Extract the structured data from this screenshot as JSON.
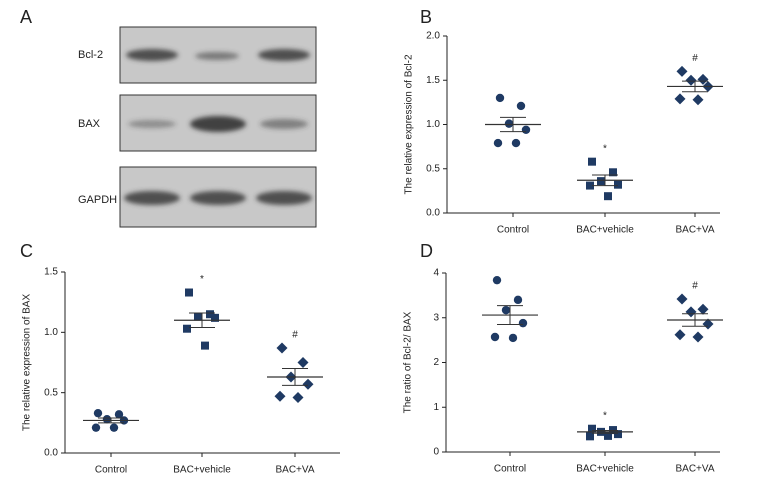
{
  "blot": {
    "panel_label": "A",
    "rows": [
      "Bcl-2",
      "BAX",
      "GAPDH"
    ]
  },
  "chart_data": [
    {
      "type": "dot",
      "panel_label": "B",
      "ylabel": "The relative expression of Bcl-2",
      "color": "#1f3a63",
      "categories": [
        "Control",
        "BAC+vehicle",
        "BAC+VA"
      ],
      "ylim": [
        0,
        2
      ],
      "yticks": [
        {
          "value": 0,
          "label": "0.0"
        },
        0.5,
        {
          "value": 1,
          "label": "1.0"
        },
        1.5,
        {
          "value": 2,
          "label": "2.0"
        }
      ],
      "groups": [
        {
          "marker": "circle",
          "values": [
            1.3,
            1.21,
            1.01,
            0.94,
            0.79,
            0.79
          ],
          "mean": 1.0,
          "sem": 0.08
        },
        {
          "marker": "square",
          "values": [
            0.58,
            0.46,
            0.36,
            0.32,
            0.31,
            0.19
          ],
          "mean": 0.37,
          "sem": 0.06,
          "annotation": "*"
        },
        {
          "marker": "diamond",
          "values": [
            1.6,
            1.51,
            1.5,
            1.43,
            1.29,
            1.28
          ],
          "mean": 1.43,
          "sem": 0.06,
          "annotation": "#"
        }
      ]
    },
    {
      "type": "dot",
      "panel_label": "C",
      "ylabel": "The relative expression of BAX",
      "color": "#1f3a63",
      "categories": [
        "Control",
        "BAC+vehicle",
        "BAC+VA"
      ],
      "ylim": [
        0,
        1.5
      ],
      "yticks": [
        {
          "value": 0,
          "label": "0.0"
        },
        0.5,
        {
          "value": 1,
          "label": "1.0"
        },
        1.5
      ],
      "groups": [
        {
          "marker": "circle",
          "values": [
            0.33,
            0.32,
            0.28,
            0.27,
            0.21,
            0.21
          ],
          "mean": 0.27,
          "sem": 0.02
        },
        {
          "marker": "square",
          "values": [
            1.33,
            1.15,
            1.13,
            1.12,
            1.03,
            0.89
          ],
          "mean": 1.1,
          "sem": 0.06,
          "annotation": "*"
        },
        {
          "marker": "diamond",
          "values": [
            0.87,
            0.75,
            0.63,
            0.57,
            0.47,
            0.46
          ],
          "mean": 0.63,
          "sem": 0.07,
          "annotation": "#"
        }
      ]
    },
    {
      "type": "dot",
      "panel_label": "D",
      "ylabel": "The ratio of Bcl-2/ BAX",
      "color": "#1f3a63",
      "categories": [
        "Control",
        "BAC+vehicle",
        "BAC+VA"
      ],
      "ylim": [
        0,
        4
      ],
      "yticks": [
        0,
        1,
        2,
        3,
        4
      ],
      "groups": [
        {
          "marker": "circle",
          "values": [
            3.84,
            3.4,
            3.17,
            2.88,
            2.57,
            2.55
          ],
          "mean": 3.06,
          "sem": 0.21
        },
        {
          "marker": "square",
          "values": [
            0.52,
            0.49,
            0.45,
            0.4,
            0.35,
            0.36
          ],
          "mean": 0.45,
          "sem": 0.03,
          "annotation": "*"
        },
        {
          "marker": "diamond",
          "values": [
            3.42,
            3.19,
            3.13,
            2.86,
            2.62,
            2.57
          ],
          "mean": 2.95,
          "sem": 0.14,
          "annotation": "#"
        }
      ]
    }
  ]
}
